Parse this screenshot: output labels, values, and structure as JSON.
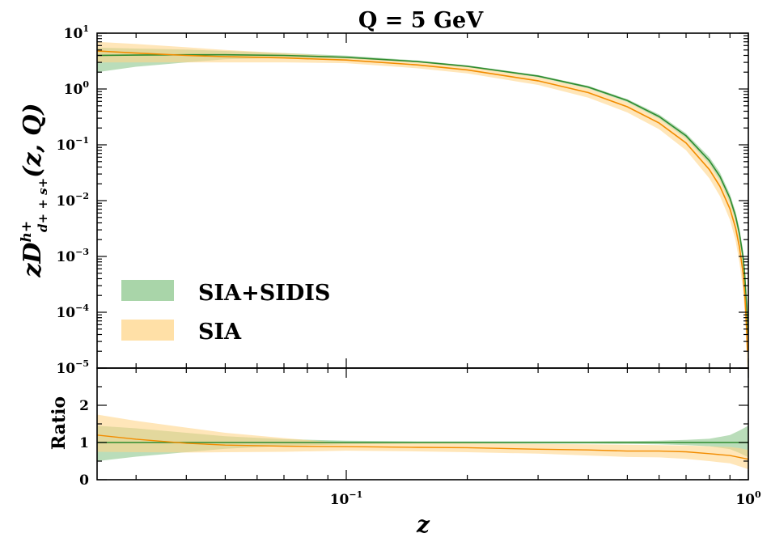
{
  "chart_data": [
    {
      "type": "area",
      "panel": "main",
      "title": "Q = 5 GeV",
      "xlabel": "z",
      "ylabel": "zD^{h+}_{d+ + s+}(z, Q)",
      "xscale": "log",
      "yscale": "log",
      "xlim": [
        0.024,
        1.0
      ],
      "ylim": [
        1e-05,
        10
      ],
      "ytick_base": "10",
      "yticks": [
        {
          "value": 10,
          "exp": "1"
        },
        {
          "value": 1,
          "exp": "0"
        },
        {
          "value": 0.1,
          "exp": "−1"
        },
        {
          "value": 0.01,
          "exp": "−2"
        },
        {
          "value": 0.001,
          "exp": "−3"
        },
        {
          "value": 0.0001,
          "exp": "−4"
        },
        {
          "value": 1e-05,
          "exp": "−5"
        }
      ],
      "x": [
        0.024,
        0.03,
        0.04,
        0.05,
        0.07,
        0.1,
        0.15,
        0.2,
        0.3,
        0.4,
        0.5,
        0.6,
        0.7,
        0.8,
        0.85,
        0.9,
        0.93,
        0.95,
        0.97,
        0.98,
        0.99,
        0.995
      ],
      "series": [
        {
          "name": "SIA+SIDIS",
          "color": "#2e8b2e",
          "band_color": "#8cc78c",
          "central": [
            4.0,
            4.05,
            4.1,
            4.1,
            4.0,
            3.7,
            3.1,
            2.55,
            1.7,
            1.08,
            0.62,
            0.32,
            0.145,
            0.052,
            0.027,
            0.011,
            0.0052,
            0.0026,
            0.001,
            0.00045,
            0.00013,
            4e-05
          ],
          "lower": [
            2.0,
            2.5,
            3.0,
            3.4,
            3.65,
            3.5,
            3.0,
            2.45,
            1.62,
            1.02,
            0.58,
            0.295,
            0.13,
            0.045,
            0.023,
            0.009,
            0.0042,
            0.002,
            0.0007,
            0.0003,
            8e-05,
            2e-05
          ],
          "upper": [
            5.5,
            5.3,
            5.1,
            4.8,
            4.4,
            3.95,
            3.25,
            2.65,
            1.78,
            1.14,
            0.66,
            0.35,
            0.16,
            0.06,
            0.032,
            0.013,
            0.0063,
            0.0032,
            0.0013,
            0.0006,
            0.00018,
            6e-05
          ]
        },
        {
          "name": "SIA",
          "color": "#f28c00",
          "band_color": "#ffd68a",
          "central": [
            4.8,
            4.4,
            4.0,
            3.8,
            3.6,
            3.3,
            2.7,
            2.2,
            1.4,
            0.86,
            0.48,
            0.245,
            0.108,
            0.036,
            0.018,
            0.0071,
            0.0032,
            0.0015,
            0.00052,
            0.00021,
            5.5e-05,
            2e-05
          ],
          "lower": [
            3.0,
            3.0,
            3.0,
            3.0,
            3.0,
            2.9,
            2.35,
            1.9,
            1.18,
            0.7,
            0.38,
            0.19,
            0.08,
            0.025,
            0.012,
            0.0045,
            0.0019,
            0.0008,
            0.00025,
            0.0001,
            2e-05,
            8e-06
          ],
          "upper": [
            7.0,
            6.4,
            5.6,
            5.0,
            4.4,
            3.75,
            3.05,
            2.5,
            1.62,
            1.02,
            0.58,
            0.3,
            0.135,
            0.047,
            0.024,
            0.0098,
            0.0045,
            0.0022,
            0.0008,
            0.00034,
            0.0001,
            4e-05
          ]
        }
      ],
      "legend": {
        "position": "lower-left",
        "entries": [
          "SIA+SIDIS",
          "SIA"
        ]
      }
    },
    {
      "type": "area",
      "panel": "ratio",
      "xlabel": "z",
      "ylabel": "Ratio",
      "xscale": "log",
      "xlim": [
        0.024,
        1.0
      ],
      "ylim": [
        0,
        3
      ],
      "yticks": [
        0,
        1,
        2
      ],
      "xticks": [
        {
          "value": 0.1,
          "base": "10",
          "exp": "−1"
        },
        {
          "value": 1.0,
          "base": "10",
          "exp": "0"
        }
      ],
      "x": [
        0.024,
        0.03,
        0.04,
        0.05,
        0.07,
        0.1,
        0.15,
        0.2,
        0.3,
        0.4,
        0.5,
        0.6,
        0.7,
        0.8,
        0.9,
        0.95,
        1.0
      ],
      "series": [
        {
          "name": "SIA+SIDIS",
          "central": [
            1.0,
            1.0,
            1.0,
            1.0,
            1.0,
            1.0,
            1.0,
            1.0,
            1.0,
            1.0,
            1.0,
            1.0,
            1.0,
            1.0,
            1.0,
            1.0,
            1.0
          ],
          "lower": [
            0.5,
            0.62,
            0.74,
            0.83,
            0.91,
            0.95,
            0.97,
            0.97,
            0.97,
            0.97,
            0.96,
            0.95,
            0.93,
            0.9,
            0.82,
            0.72,
            0.6
          ],
          "upper": [
            1.45,
            1.38,
            1.26,
            1.17,
            1.09,
            1.05,
            1.03,
            1.03,
            1.03,
            1.03,
            1.04,
            1.05,
            1.07,
            1.1,
            1.2,
            1.32,
            1.45
          ]
        },
        {
          "name": "SIA",
          "central": [
            1.2,
            1.09,
            0.98,
            0.93,
            0.9,
            0.89,
            0.87,
            0.86,
            0.82,
            0.8,
            0.77,
            0.77,
            0.75,
            0.7,
            0.65,
            0.6,
            0.55
          ],
          "lower": [
            0.75,
            0.74,
            0.73,
            0.74,
            0.75,
            0.78,
            0.76,
            0.74,
            0.7,
            0.65,
            0.61,
            0.6,
            0.56,
            0.5,
            0.44,
            0.36,
            0.28
          ],
          "upper": [
            1.75,
            1.58,
            1.4,
            1.26,
            1.12,
            0.98,
            0.98,
            0.98,
            0.96,
            0.95,
            0.94,
            0.93,
            0.92,
            0.9,
            0.88,
            0.85,
            0.8
          ]
        }
      ]
    }
  ],
  "colors": {
    "sidis_line": "#2e8b2e",
    "sidis_band": "#8cc78c",
    "sia_line": "#f28c00",
    "sia_band": "#ffd68a"
  }
}
